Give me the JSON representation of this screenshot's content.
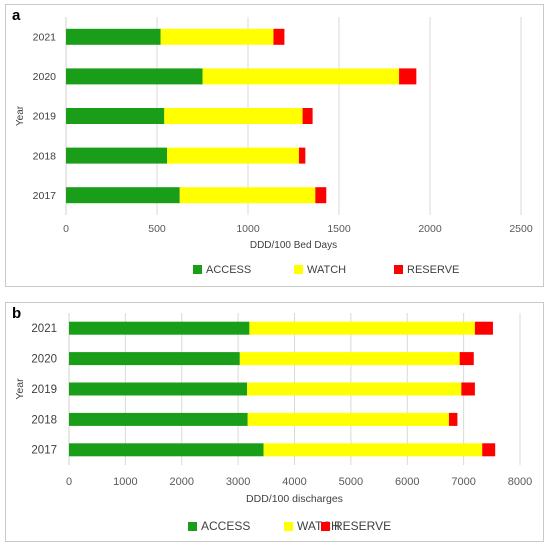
{
  "panels": [
    {
      "letter": "a"
    },
    {
      "letter": "b"
    }
  ],
  "colors": {
    "access": "#1a9e1a",
    "watch": "#ffff00",
    "reserve": "#ff0000",
    "grid": "#d9d9d9"
  },
  "chart_data": [
    {
      "type": "bar",
      "orientation": "horizontal",
      "stacked": true,
      "categories": [
        "2021",
        "2020",
        "2019",
        "2018",
        "2017"
      ],
      "series": [
        {
          "name": "ACCESS",
          "values": [
            520,
            750,
            540,
            555,
            625
          ]
        },
        {
          "name": "WATCH",
          "values": [
            620,
            1080,
            760,
            725,
            745
          ]
        },
        {
          "name": "RESERVE",
          "values": [
            60,
            95,
            55,
            35,
            60
          ]
        }
      ],
      "xlabel": "DDD/100 Bed Days",
      "ylabel": "Year",
      "xlim": [
        0,
        2500
      ],
      "xticks": [
        0,
        500,
        1000,
        1500,
        2000,
        2500
      ],
      "grid": "vertical",
      "legend": "bottom"
    },
    {
      "type": "bar",
      "orientation": "horizontal",
      "stacked": true,
      "categories": [
        "2021",
        "2020",
        "2019",
        "2018",
        "2017"
      ],
      "series": [
        {
          "name": "ACCESS",
          "values": [
            3200,
            3030,
            3160,
            3170,
            3450
          ]
        },
        {
          "name": "WATCH",
          "values": [
            4000,
            3900,
            3800,
            3570,
            3880
          ]
        },
        {
          "name": "RESERVE",
          "values": [
            320,
            250,
            240,
            150,
            230
          ]
        }
      ],
      "xlabel": "DDD/100 discharges",
      "ylabel": "Year",
      "xlim": [
        0,
        8000
      ],
      "xticks": [
        0,
        1000,
        2000,
        3000,
        4000,
        5000,
        6000,
        7000,
        8000
      ],
      "grid": "vertical",
      "legend": "bottom"
    }
  ]
}
